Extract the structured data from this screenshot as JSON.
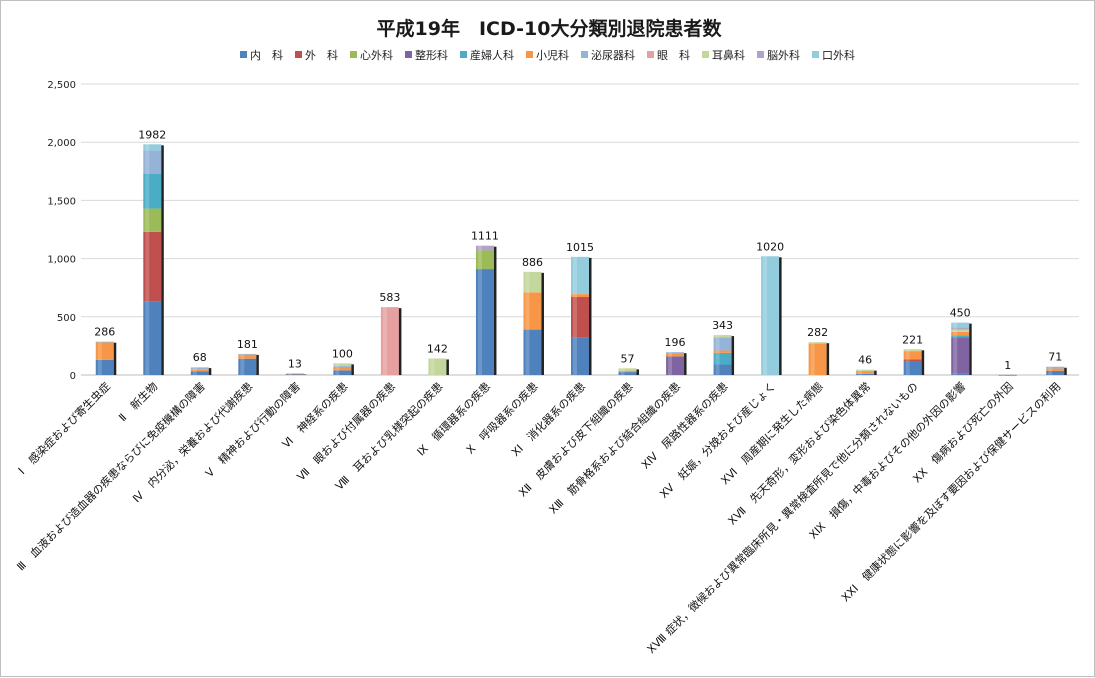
{
  "chart_data": {
    "type": "bar",
    "stacked": true,
    "title": "平成19年　ICD-10大分類別退院患者数",
    "ylim": [
      0,
      2500
    ],
    "yticks": [
      "0",
      "500",
      "1,000",
      "1,500",
      "2,000",
      "2,500"
    ],
    "grid": true,
    "legend_position": "top",
    "series": [
      {
        "name": "内　科",
        "color": "#4f81bd",
        "values": [
          130,
          630,
          30,
          140,
          8,
          40,
          0,
          0,
          910,
          390,
          320,
          25,
          0,
          90,
          0,
          0,
          10,
          120,
          10,
          1,
          35
        ]
      },
      {
        "name": "外　科",
        "color": "#c0504d",
        "values": [
          0,
          600,
          0,
          0,
          0,
          0,
          0,
          0,
          0,
          0,
          350,
          0,
          0,
          0,
          0,
          0,
          0,
          15,
          5,
          0,
          0
        ]
      },
      {
        "name": "心外科",
        "color": "#9bbb59",
        "values": [
          0,
          200,
          0,
          0,
          0,
          0,
          0,
          0,
          160,
          0,
          0,
          0,
          0,
          0,
          0,
          0,
          0,
          0,
          0,
          0,
          0
        ]
      },
      {
        "name": "整形科",
        "color": "#8064a2",
        "values": [
          0,
          0,
          0,
          0,
          0,
          0,
          0,
          0,
          0,
          0,
          0,
          0,
          160,
          0,
          0,
          0,
          0,
          0,
          310,
          0,
          0
        ]
      },
      {
        "name": "産婦人科",
        "color": "#4bacc6",
        "values": [
          0,
          300,
          0,
          0,
          0,
          0,
          0,
          0,
          0,
          0,
          0,
          0,
          0,
          100,
          0,
          0,
          0,
          0,
          15,
          0,
          0
        ]
      },
      {
        "name": "小児科",
        "color": "#f79646",
        "values": [
          150,
          0,
          15,
          35,
          5,
          30,
          0,
          0,
          0,
          320,
          25,
          12,
          25,
          20,
          0,
          270,
          20,
          70,
          30,
          0,
          20
        ]
      },
      {
        "name": "泌尿器科",
        "color": "#95b3d7",
        "values": [
          6,
          200,
          15,
          6,
          0,
          10,
          0,
          0,
          0,
          0,
          0,
          0,
          11,
          113,
          0,
          0,
          5,
          0,
          0,
          0,
          16
        ]
      },
      {
        "name": "眼　科",
        "color": "#e6a0a0",
        "values": [
          0,
          0,
          0,
          0,
          0,
          0,
          583,
          0,
          0,
          0,
          0,
          0,
          0,
          0,
          0,
          0,
          0,
          0,
          0,
          0,
          0
        ]
      },
      {
        "name": "耳鼻科",
        "color": "#c3d69b",
        "values": [
          0,
          0,
          8,
          0,
          0,
          20,
          0,
          142,
          0,
          176,
          0,
          20,
          0,
          20,
          0,
          12,
          11,
          16,
          20,
          0,
          0
        ]
      },
      {
        "name": "脳外科",
        "color": "#b3a2c7",
        "values": [
          0,
          0,
          0,
          0,
          0,
          0,
          0,
          0,
          41,
          0,
          0,
          0,
          0,
          0,
          0,
          0,
          0,
          0,
          20,
          0,
          0
        ]
      },
      {
        "name": "口外科",
        "color": "#93cddd",
        "values": [
          0,
          52,
          0,
          0,
          0,
          0,
          0,
          0,
          0,
          0,
          320,
          0,
          0,
          0,
          1020,
          0,
          0,
          0,
          40,
          0,
          0
        ]
      }
    ],
    "totals": [
      "286",
      "1982",
      "68",
      "181",
      "13",
      "100",
      "583",
      "142",
      "1111",
      "886",
      "1015",
      "57",
      "196",
      "343",
      "1020",
      "282",
      "46",
      "221",
      "450",
      "1",
      "71"
    ],
    "categories": [
      "Ⅰ　感染症および寄生虫症",
      "Ⅱ　新生物",
      "Ⅲ　血液および造血器の疾患ならびに免疫機構の障害",
      "Ⅳ　内分泌，栄養および代謝疾患",
      "Ⅴ　精神および行動の障害",
      "Ⅵ　神経系の疾患",
      "Ⅶ　眼および付属器の疾患",
      "Ⅷ　耳および乳様突起の疾患",
      "Ⅸ　循環器系の疾患",
      "Ⅹ　呼吸器系の疾患",
      "XⅠ　消化器系の疾患",
      "XⅡ　皮膚および皮下組織の疾患",
      "XⅢ　筋骨格系および結合組織の疾患",
      "XⅣ　尿路性器系の疾患",
      "XⅤ　妊娠，分娩および産じょく",
      "XⅥ　周産期に発生した病態",
      "XⅦ　先天奇形，変形および染色体異常",
      "XⅧ 症状，徴候および異常臨床所見・異常検査所見で他に分類されないもの",
      "XⅨ　損傷，中毒およびその他の外因の影響",
      "XⅩ　傷病および死亡の外因",
      "XⅩⅠ　健康状態に影響を及ぼす要因および保健サービスの利用"
    ]
  }
}
